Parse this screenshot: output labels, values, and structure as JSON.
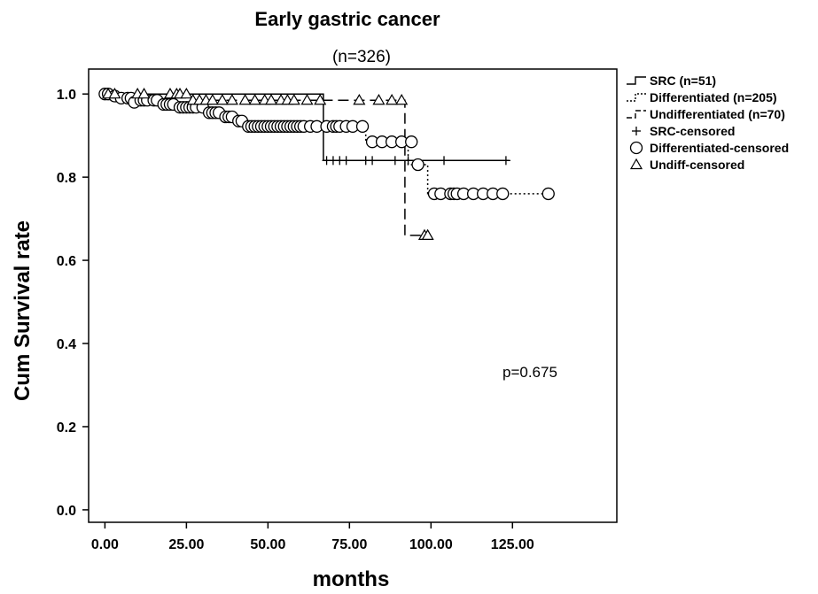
{
  "chart_data": {
    "type": "line",
    "title": "Early gastric cancer",
    "subtitle": "(n=326)",
    "xlabel": "months",
    "ylabel": "Cum Survival rate",
    "xlim": [
      -5,
      157
    ],
    "ylim": [
      -0.03,
      1.06
    ],
    "x_ticks": [
      0,
      25,
      50,
      75,
      100,
      125
    ],
    "x_tick_labels": [
      "0.00",
      "25.00",
      "50.00",
      "75.00",
      "100.00",
      "125.00"
    ],
    "y_ticks": [
      0,
      0.2,
      0.4,
      0.6,
      0.8,
      1.0
    ],
    "y_tick_labels": [
      "0.0",
      "0.2",
      "0.4",
      "0.6",
      "0.8",
      "1.0"
    ],
    "grid": false,
    "legend_position": "right",
    "annotation": "p=0.675",
    "series": [
      {
        "name": "SRC (n=51)",
        "style": "solid",
        "steps": [
          [
            0,
            1.0
          ],
          [
            67,
            1.0
          ],
          [
            67,
            0.84
          ],
          [
            124,
            0.84
          ]
        ],
        "censored_name": "SRC-censored",
        "censor_marker": "plus",
        "censored": [
          [
            68,
            0.84
          ],
          [
            70,
            0.84
          ],
          [
            72,
            0.84
          ],
          [
            74,
            0.84
          ],
          [
            80,
            0.84
          ],
          [
            82,
            0.84
          ],
          [
            89,
            0.84
          ],
          [
            93,
            0.84
          ],
          [
            104,
            0.84
          ],
          [
            123,
            0.84
          ]
        ]
      },
      {
        "name": "Differentiated (n=205)",
        "style": "dotted",
        "steps": [
          [
            0,
            1.0
          ],
          [
            6,
            1.0
          ],
          [
            6,
            0.99
          ],
          [
            9,
            0.99
          ],
          [
            9,
            0.985
          ],
          [
            17,
            0.985
          ],
          [
            17,
            0.975
          ],
          [
            22,
            0.975
          ],
          [
            22,
            0.968
          ],
          [
            31,
            0.968
          ],
          [
            31,
            0.955
          ],
          [
            36,
            0.955
          ],
          [
            36,
            0.945
          ],
          [
            40,
            0.945
          ],
          [
            40,
            0.935
          ],
          [
            43,
            0.935
          ],
          [
            43,
            0.922
          ],
          [
            80,
            0.922
          ],
          [
            80,
            0.885
          ],
          [
            93,
            0.885
          ],
          [
            93,
            0.83
          ],
          [
            99,
            0.83
          ],
          [
            99,
            0.76
          ],
          [
            136,
            0.76
          ]
        ],
        "censored_name": "Differentiated-censored",
        "censor_marker": "circle",
        "censored": [
          [
            0,
            1.0
          ],
          [
            1,
            1.0
          ],
          [
            3,
            0.995
          ],
          [
            5,
            0.99
          ],
          [
            7,
            0.99
          ],
          [
            8,
            0.99
          ],
          [
            9,
            0.98
          ],
          [
            11,
            0.985
          ],
          [
            12,
            0.985
          ],
          [
            13,
            0.985
          ],
          [
            15,
            0.985
          ],
          [
            16,
            0.985
          ],
          [
            18,
            0.975
          ],
          [
            19,
            0.975
          ],
          [
            20,
            0.975
          ],
          [
            21,
            0.975
          ],
          [
            23,
            0.968
          ],
          [
            24,
            0.968
          ],
          [
            25,
            0.968
          ],
          [
            26,
            0.968
          ],
          [
            27,
            0.968
          ],
          [
            28,
            0.968
          ],
          [
            30,
            0.968
          ],
          [
            32,
            0.955
          ],
          [
            33,
            0.955
          ],
          [
            34,
            0.955
          ],
          [
            35,
            0.955
          ],
          [
            37,
            0.945
          ],
          [
            38,
            0.945
          ],
          [
            39,
            0.945
          ],
          [
            41,
            0.935
          ],
          [
            42,
            0.935
          ],
          [
            44,
            0.922
          ],
          [
            45,
            0.922
          ],
          [
            46,
            0.922
          ],
          [
            47,
            0.922
          ],
          [
            48,
            0.922
          ],
          [
            49,
            0.922
          ],
          [
            50,
            0.922
          ],
          [
            51,
            0.922
          ],
          [
            52,
            0.922
          ],
          [
            53,
            0.922
          ],
          [
            54,
            0.922
          ],
          [
            55,
            0.922
          ],
          [
            56,
            0.922
          ],
          [
            57,
            0.922
          ],
          [
            58,
            0.922
          ],
          [
            59,
            0.922
          ],
          [
            60,
            0.922
          ],
          [
            61,
            0.922
          ],
          [
            63,
            0.922
          ],
          [
            65,
            0.922
          ],
          [
            68,
            0.922
          ],
          [
            70,
            0.922
          ],
          [
            71,
            0.922
          ],
          [
            72,
            0.922
          ],
          [
            74,
            0.922
          ],
          [
            76,
            0.922
          ],
          [
            79,
            0.922
          ],
          [
            82,
            0.885
          ],
          [
            85,
            0.885
          ],
          [
            88,
            0.885
          ],
          [
            91,
            0.885
          ],
          [
            94,
            0.885
          ],
          [
            96,
            0.83
          ],
          [
            101,
            0.76
          ],
          [
            103,
            0.76
          ],
          [
            106,
            0.76
          ],
          [
            107,
            0.76
          ],
          [
            108,
            0.76
          ],
          [
            110,
            0.76
          ],
          [
            113,
            0.76
          ],
          [
            116,
            0.76
          ],
          [
            119,
            0.76
          ],
          [
            122,
            0.76
          ],
          [
            136,
            0.76
          ]
        ]
      },
      {
        "name": "Undifferentiated (n=70)",
        "style": "dashed",
        "steps": [
          [
            0,
            1.0
          ],
          [
            27,
            1.0
          ],
          [
            27,
            0.985
          ],
          [
            92,
            0.985
          ],
          [
            92,
            0.66
          ],
          [
            99,
            0.66
          ]
        ],
        "censored_name": "Undiff-censored",
        "censor_marker": "triangle",
        "censored": [
          [
            1,
            1.0
          ],
          [
            3,
            1.0
          ],
          [
            10,
            1.0
          ],
          [
            12,
            1.0
          ],
          [
            20,
            1.0
          ],
          [
            22,
            1.0
          ],
          [
            23,
            1.0
          ],
          [
            25,
            1.0
          ],
          [
            27,
            0.985
          ],
          [
            29,
            0.985
          ],
          [
            31,
            0.985
          ],
          [
            33,
            0.985
          ],
          [
            36,
            0.985
          ],
          [
            39,
            0.985
          ],
          [
            43,
            0.985
          ],
          [
            46,
            0.985
          ],
          [
            49,
            0.985
          ],
          [
            51,
            0.985
          ],
          [
            54,
            0.985
          ],
          [
            56,
            0.985
          ],
          [
            58,
            0.985
          ],
          [
            62,
            0.985
          ],
          [
            66,
            0.985
          ],
          [
            78,
            0.985
          ],
          [
            84,
            0.985
          ],
          [
            88,
            0.985
          ],
          [
            91,
            0.985
          ],
          [
            98,
            0.66
          ],
          [
            99,
            0.66
          ]
        ]
      }
    ]
  }
}
